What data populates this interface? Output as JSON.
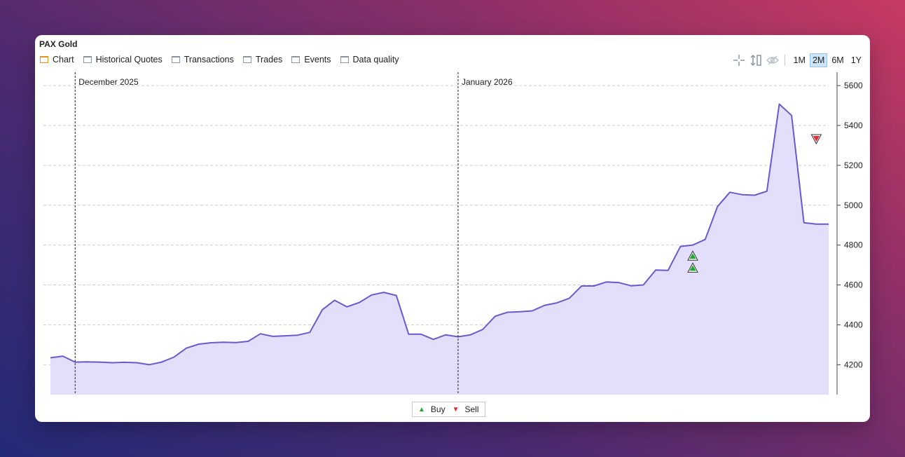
{
  "window": {
    "title": "PAX Gold"
  },
  "tabs": [
    {
      "label": "Chart",
      "active": true
    },
    {
      "label": "Historical Quotes",
      "active": false
    },
    {
      "label": "Transactions",
      "active": false
    },
    {
      "label": "Trades",
      "active": false
    },
    {
      "label": "Events",
      "active": false
    },
    {
      "label": "Data quality",
      "active": false
    }
  ],
  "toolbar": {
    "icons": [
      "crosshair-icon",
      "vertical-resize-icon",
      "eye-hidden-icon"
    ],
    "ranges": [
      {
        "label": "1M",
        "active": false
      },
      {
        "label": "2M",
        "active": true
      },
      {
        "label": "6M",
        "active": false
      },
      {
        "label": "1Y",
        "active": false
      }
    ]
  },
  "legend": {
    "buy": "Buy",
    "sell": "Sell"
  },
  "colors": {
    "line": "#6a5acd",
    "area": "#e3defa",
    "buy": "#1fa82e",
    "sell": "#e52b2b",
    "active_tab": "#e8921c",
    "active_range": "#cde3f7"
  },
  "chart_data": {
    "type": "area",
    "title": "",
    "xlabel": "",
    "ylabel": "",
    "ylim": [
      4050,
      5660
    ],
    "yticks": [
      4200,
      4400,
      4600,
      4800,
      5000,
      5200,
      5400,
      5600
    ],
    "grid": true,
    "x_axis_markers": [
      {
        "label": "December 2025",
        "date": "2025-12-01"
      },
      {
        "label": "January 2026",
        "date": "2026-01-01"
      }
    ],
    "series": [
      {
        "x": [
          "2025-11-29",
          "2025-11-30",
          "2025-12-01",
          "2025-12-02",
          "2025-12-03",
          "2025-12-04",
          "2025-12-05",
          "2025-12-06",
          "2025-12-07",
          "2025-12-08",
          "2025-12-09",
          "2025-12-10",
          "2025-12-11",
          "2025-12-12",
          "2025-12-13",
          "2025-12-14",
          "2025-12-15",
          "2025-12-16",
          "2025-12-17",
          "2025-12-18",
          "2025-12-19",
          "2025-12-20",
          "2025-12-21",
          "2025-12-22",
          "2025-12-23",
          "2025-12-24",
          "2025-12-25",
          "2025-12-26",
          "2025-12-27",
          "2025-12-28",
          "2025-12-29",
          "2025-12-30",
          "2025-12-31",
          "2026-01-01",
          "2026-01-02",
          "2026-01-03",
          "2026-01-04",
          "2026-01-05",
          "2026-01-06",
          "2026-01-07",
          "2026-01-08",
          "2026-01-09",
          "2026-01-10",
          "2026-01-11",
          "2026-01-12",
          "2026-01-13",
          "2026-01-14",
          "2026-01-15",
          "2026-01-16",
          "2026-01-17",
          "2026-01-18",
          "2026-01-19",
          "2026-01-20",
          "2026-01-21",
          "2026-01-22",
          "2026-01-23",
          "2026-01-24",
          "2026-01-25",
          "2026-01-26",
          "2026-01-27",
          "2026-01-28",
          "2026-01-29",
          "2026-01-30",
          "2026-01-31"
        ],
        "values": [
          4235,
          4243,
          4213,
          4214,
          4213,
          4210,
          4212,
          4210,
          4200,
          4213,
          4238,
          4283,
          4303,
          4310,
          4313,
          4311,
          4317,
          4355,
          4342,
          4345,
          4348,
          4362,
          4475,
          4523,
          4490,
          4512,
          4550,
          4563,
          4547,
          4353,
          4353,
          4327,
          4350,
          4340,
          4350,
          4377,
          4443,
          4463,
          4466,
          4470,
          4498,
          4510,
          4533,
          4595,
          4595,
          4615,
          4612,
          4596,
          4600,
          4675,
          4673,
          4793,
          4800,
          4828,
          4993,
          5065,
          5053,
          5050,
          5070,
          5507,
          5450,
          4912,
          4905,
          4905
        ]
      }
    ],
    "markers": [
      {
        "type": "buy",
        "date": "2026-01-20",
        "value": 4745
      },
      {
        "type": "buy",
        "date": "2026-01-20",
        "value": 4685
      },
      {
        "type": "sell",
        "date": "2026-01-30",
        "value": 5333
      }
    ]
  }
}
